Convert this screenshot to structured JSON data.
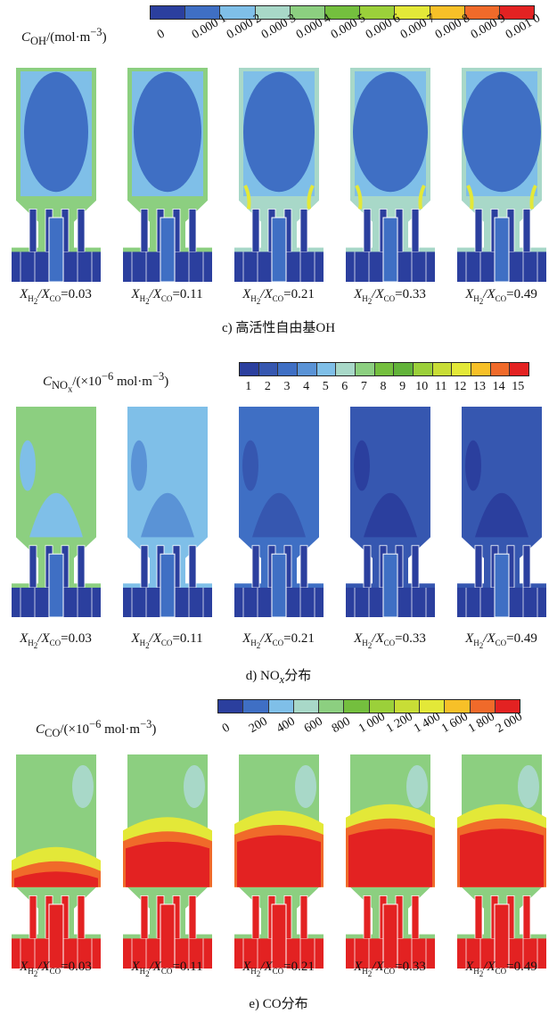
{
  "panel_c": {
    "legend_label": "C",
    "legend_label_sub": "OH",
    "legend_unit": "/(mol·m",
    "legend_unit_sup": "−3",
    "legend_unit_end": ")",
    "ticks": [
      "0",
      "0.000 1",
      "0.000 2",
      "0.000 3",
      "0.000 4",
      "0.000 5",
      "0.000 6",
      "0.000 7",
      "0.000 8",
      "0.000 9",
      "0.001 0"
    ],
    "colors": [
      "#2b3f9e",
      "#3f6fc4",
      "#7fbfe8",
      "#a8d8c8",
      "#8ccf80",
      "#74bf3e",
      "#9bd03a",
      "#e3e838",
      "#f7c028",
      "#f06a2a",
      "#e32222"
    ],
    "caption": "c) 高活性自由基OH"
  },
  "panel_d": {
    "legend_label": "C",
    "legend_label_sub": "NO",
    "legend_label_subsub": "x",
    "legend_unit": "/(×10",
    "legend_unit_sup1": "−6",
    "legend_unit_mid": " mol·m",
    "legend_unit_sup2": "−3",
    "legend_unit_end": ")",
    "ticks": [
      "1",
      "2",
      "3",
      "4",
      "5",
      "6",
      "7",
      "8",
      "9",
      "10",
      "11",
      "12",
      "13",
      "14",
      "15"
    ],
    "colors": [
      "#2b3f9e",
      "#3657b0",
      "#3f6fc4",
      "#5a93d6",
      "#7fbfe8",
      "#a8d8c8",
      "#8ccf80",
      "#74bf3e",
      "#62b33a",
      "#9bd03a",
      "#c8dd36",
      "#e3e838",
      "#f7c028",
      "#f06a2a",
      "#e32222"
    ],
    "caption_main": "d) NO",
    "caption_sub": "x",
    "caption_end": "分布"
  },
  "panel_e": {
    "legend_label": "C",
    "legend_label_sub": "CO",
    "legend_unit": "/(×10",
    "legend_unit_sup": "−6",
    "legend_unit_mid": " mol·m",
    "legend_unit_sup2": "−3",
    "legend_unit_end": ")",
    "ticks": [
      "0",
      "200",
      "400",
      "600",
      "800",
      "1 000",
      "1 200",
      "1 400",
      "1 600",
      "1 800",
      "2 000"
    ],
    "colors": [
      "#2b3f9e",
      "#3f6fc4",
      "#7fbfe8",
      "#a8d8c8",
      "#8ccf80",
      "#74bf3e",
      "#9bd03a",
      "#c8dd36",
      "#e3e838",
      "#f7c028",
      "#f06a2a",
      "#e32222"
    ],
    "caption": "e) CO分布"
  },
  "condition": {
    "x": "X",
    "h2": "H",
    "h2sub": "2",
    "sep": "/X",
    "co": "CO",
    "values": [
      "=0.03",
      "=0.11",
      "=0.21",
      "=0.33",
      "=0.49"
    ]
  }
}
